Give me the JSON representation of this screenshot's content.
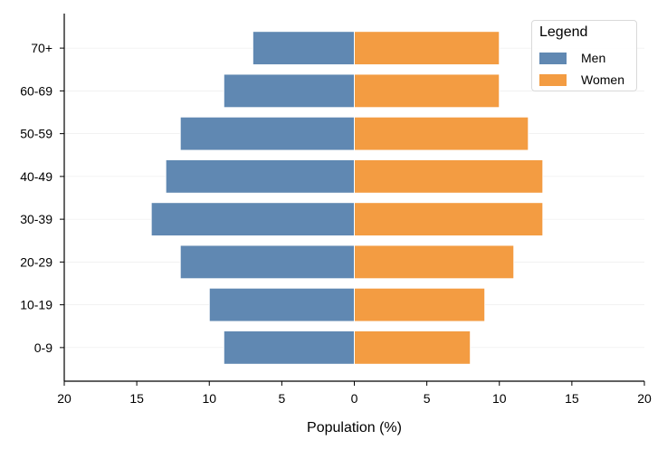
{
  "chart_data": {
    "type": "bar",
    "orientation": "horizontal",
    "categories": [
      "0-9",
      "10-19",
      "20-29",
      "30-39",
      "40-49",
      "50-59",
      "60-69",
      "70+"
    ],
    "series": [
      {
        "name": "Men",
        "values": [
          -9,
          -10,
          -12,
          -14,
          -13,
          -12,
          -9,
          -7
        ],
        "color": "#6088b2"
      },
      {
        "name": "Women",
        "values": [
          8,
          9,
          11,
          13,
          13,
          12,
          10,
          10
        ],
        "color": "#f39c42"
      }
    ],
    "x_ticks": [
      -20,
      -15,
      -10,
      -5,
      0,
      5,
      10,
      15,
      20
    ],
    "x_tick_labels": [
      "20",
      "15",
      "10",
      "5",
      "0",
      "5",
      "10",
      "15",
      "20"
    ],
    "xlabel": "Population (%)",
    "ylabel": "",
    "xlim": [
      -20,
      20
    ],
    "grid": "horizontal-light",
    "legend": {
      "title": "Legend",
      "placement": "top-right"
    }
  }
}
